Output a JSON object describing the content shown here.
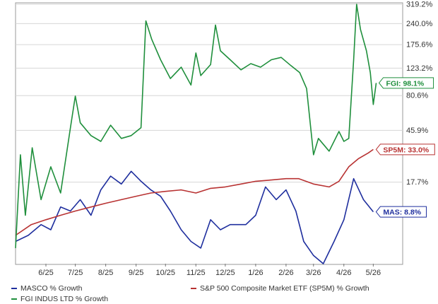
{
  "chart_data": {
    "type": "line",
    "title": "",
    "xlabel": "",
    "ylabel": "",
    "scale": "log",
    "ylim": [
      0,
      319.2
    ],
    "grid": true,
    "legend_placement": "bottom",
    "x_ticks": [
      "6/25",
      "7/25",
      "8/25",
      "9/25",
      "10/25",
      "11/25",
      "12/25",
      "1/26",
      "2/26",
      "3/26",
      "4/26",
      "5/26"
    ],
    "y_ticks": [
      "17.7%",
      "45.9%",
      "80.6%",
      "123.2%",
      "175.6%",
      "240.0%",
      "319.2%"
    ],
    "y_tick_values": [
      17.7,
      45.9,
      80.6,
      123.2,
      175.6,
      240.0,
      319.2
    ],
    "series": [
      {
        "name": "MASCO % Growth",
        "color": "#1f2f9e",
        "end_label": "MAS: 8.8%",
        "points": [
          [
            "2025-05-15",
            3
          ],
          [
            "2025-05-28",
            4
          ],
          [
            "2025-06-10",
            6
          ],
          [
            "2025-06-20",
            5
          ],
          [
            "2025-06-30",
            10
          ],
          [
            "2025-07-10",
            9
          ],
          [
            "2025-07-20",
            12
          ],
          [
            "2025-07-31",
            8
          ],
          [
            "2025-08-10",
            15
          ],
          [
            "2025-08-20",
            20
          ],
          [
            "2025-08-31",
            17
          ],
          [
            "2025-09-10",
            22
          ],
          [
            "2025-09-20",
            18
          ],
          [
            "2025-09-30",
            15
          ],
          [
            "2025-10-10",
            13
          ],
          [
            "2025-10-20",
            9
          ],
          [
            "2025-10-31",
            5
          ],
          [
            "2025-11-10",
            3
          ],
          [
            "2025-11-20",
            2
          ],
          [
            "2025-11-30",
            7
          ],
          [
            "2025-12-10",
            5
          ],
          [
            "2025-12-20",
            6
          ],
          [
            "2026-01-05",
            6
          ],
          [
            "2026-01-15",
            8
          ],
          [
            "2026-01-25",
            16
          ],
          [
            "2026-02-05",
            12
          ],
          [
            "2026-02-15",
            15
          ],
          [
            "2026-02-25",
            9
          ],
          [
            "2026-03-05",
            3
          ],
          [
            "2026-03-15",
            1
          ],
          [
            "2026-03-25",
            0
          ],
          [
            "2026-04-05",
            3
          ],
          [
            "2026-04-15",
            7
          ],
          [
            "2026-04-25",
            19
          ],
          [
            "2026-05-05",
            12
          ],
          [
            "2026-05-15",
            8.8
          ]
        ]
      },
      {
        "name": "S&P 500 Composite Market ETF (SP5M) % Growth",
        "color": "#b83232",
        "end_label": "SP5M: 33.0%",
        "points": [
          [
            "2025-05-15",
            4
          ],
          [
            "2025-05-31",
            6
          ],
          [
            "2025-06-15",
            7
          ],
          [
            "2025-06-30",
            8
          ],
          [
            "2025-07-15",
            9
          ],
          [
            "2025-07-31",
            10
          ],
          [
            "2025-08-15",
            11
          ],
          [
            "2025-08-31",
            12
          ],
          [
            "2025-09-15",
            13
          ],
          [
            "2025-09-30",
            14
          ],
          [
            "2025-10-15",
            14.5
          ],
          [
            "2025-10-31",
            15
          ],
          [
            "2025-11-15",
            14
          ],
          [
            "2025-11-30",
            15.5
          ],
          [
            "2025-12-15",
            16
          ],
          [
            "2025-12-31",
            17
          ],
          [
            "2026-01-15",
            18
          ],
          [
            "2026-01-31",
            18.5
          ],
          [
            "2026-02-15",
            19
          ],
          [
            "2026-02-28",
            19
          ],
          [
            "2026-03-15",
            17
          ],
          [
            "2026-03-31",
            16
          ],
          [
            "2026-04-10",
            18
          ],
          [
            "2026-04-20",
            24
          ],
          [
            "2026-04-30",
            28
          ],
          [
            "2026-05-10",
            31
          ],
          [
            "2026-05-15",
            33.0
          ]
        ]
      },
      {
        "name": "FGI INDUS LTD % Growth",
        "color": "#1f8f3c",
        "end_label": "FGI: 98.1%",
        "points": [
          [
            "2025-05-15",
            2
          ],
          [
            "2025-05-20",
            30
          ],
          [
            "2025-05-25",
            8
          ],
          [
            "2025-06-01",
            34
          ],
          [
            "2025-06-10",
            12
          ],
          [
            "2025-06-20",
            24
          ],
          [
            "2025-06-30",
            14
          ],
          [
            "2025-07-10",
            48
          ],
          [
            "2025-07-15",
            80
          ],
          [
            "2025-07-20",
            52
          ],
          [
            "2025-07-31",
            42
          ],
          [
            "2025-08-10",
            38
          ],
          [
            "2025-08-20",
            50
          ],
          [
            "2025-08-31",
            40
          ],
          [
            "2025-09-10",
            42
          ],
          [
            "2025-09-20",
            48
          ],
          [
            "2025-09-25",
            250
          ],
          [
            "2025-10-01",
            190
          ],
          [
            "2025-10-10",
            140
          ],
          [
            "2025-10-20",
            105
          ],
          [
            "2025-10-31",
            125
          ],
          [
            "2025-11-10",
            95
          ],
          [
            "2025-11-15",
            155
          ],
          [
            "2025-11-20",
            110
          ],
          [
            "2025-11-30",
            130
          ],
          [
            "2025-12-05",
            235
          ],
          [
            "2025-12-10",
            160
          ],
          [
            "2025-12-20",
            140
          ],
          [
            "2025-12-31",
            120
          ],
          [
            "2026-01-10",
            132
          ],
          [
            "2026-01-20",
            125
          ],
          [
            "2026-01-31",
            140
          ],
          [
            "2026-02-10",
            145
          ],
          [
            "2026-02-20",
            128
          ],
          [
            "2026-03-01",
            115
          ],
          [
            "2026-03-08",
            90
          ],
          [
            "2026-03-15",
            30
          ],
          [
            "2026-03-20",
            40
          ],
          [
            "2026-03-31",
            32
          ],
          [
            "2026-04-10",
            45
          ],
          [
            "2026-04-15",
            38
          ],
          [
            "2026-04-20",
            40
          ],
          [
            "2026-04-25",
            140
          ],
          [
            "2026-04-28",
            319.2
          ],
          [
            "2026-05-02",
            220
          ],
          [
            "2026-05-08",
            160
          ],
          [
            "2026-05-12",
            115
          ],
          [
            "2026-05-15",
            70
          ],
          [
            "2026-05-18",
            98.1
          ]
        ]
      }
    ]
  },
  "legend": [
    {
      "label": "MASCO % Growth",
      "color": "#1f2f9e"
    },
    {
      "label": "S&P 500 Composite Market ETF (SP5M) % Growth",
      "color": "#b83232"
    },
    {
      "label": "FGI INDUS LTD % Growth",
      "color": "#1f8f3c"
    }
  ]
}
